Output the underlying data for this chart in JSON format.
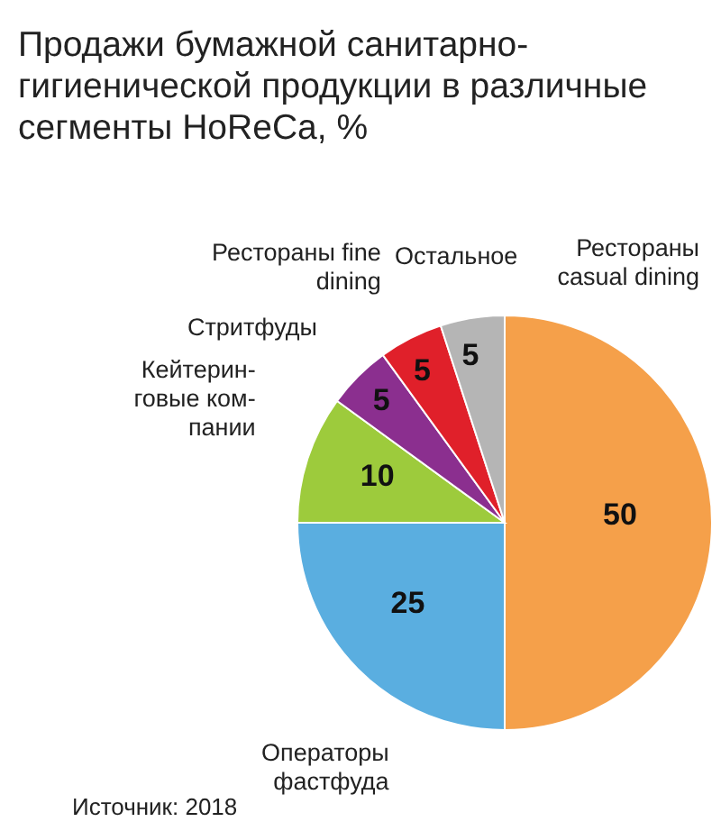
{
  "chart_data": {
    "type": "pie",
    "title": "Продажи бумажной санитарно-\nгигиенической продукции в различные\nсегменты HoReCa, %",
    "categories": [
      "Рестораны\ncasual dining",
      "Операторы\nфастфуда",
      "Кейтерин-\nговые ком-\nпании",
      "Стритфуды",
      "Рестораны fine\ndining",
      "Остальное"
    ],
    "values": [
      50,
      25,
      10,
      5,
      5,
      5
    ],
    "colors": [
      "#f5a04a",
      "#5aaee0",
      "#9dcb3c",
      "#8b2f8f",
      "#e0202a",
      "#b5b5b5"
    ],
    "data_labels": true,
    "annotations": [
      "Источник: 2018"
    ]
  }
}
